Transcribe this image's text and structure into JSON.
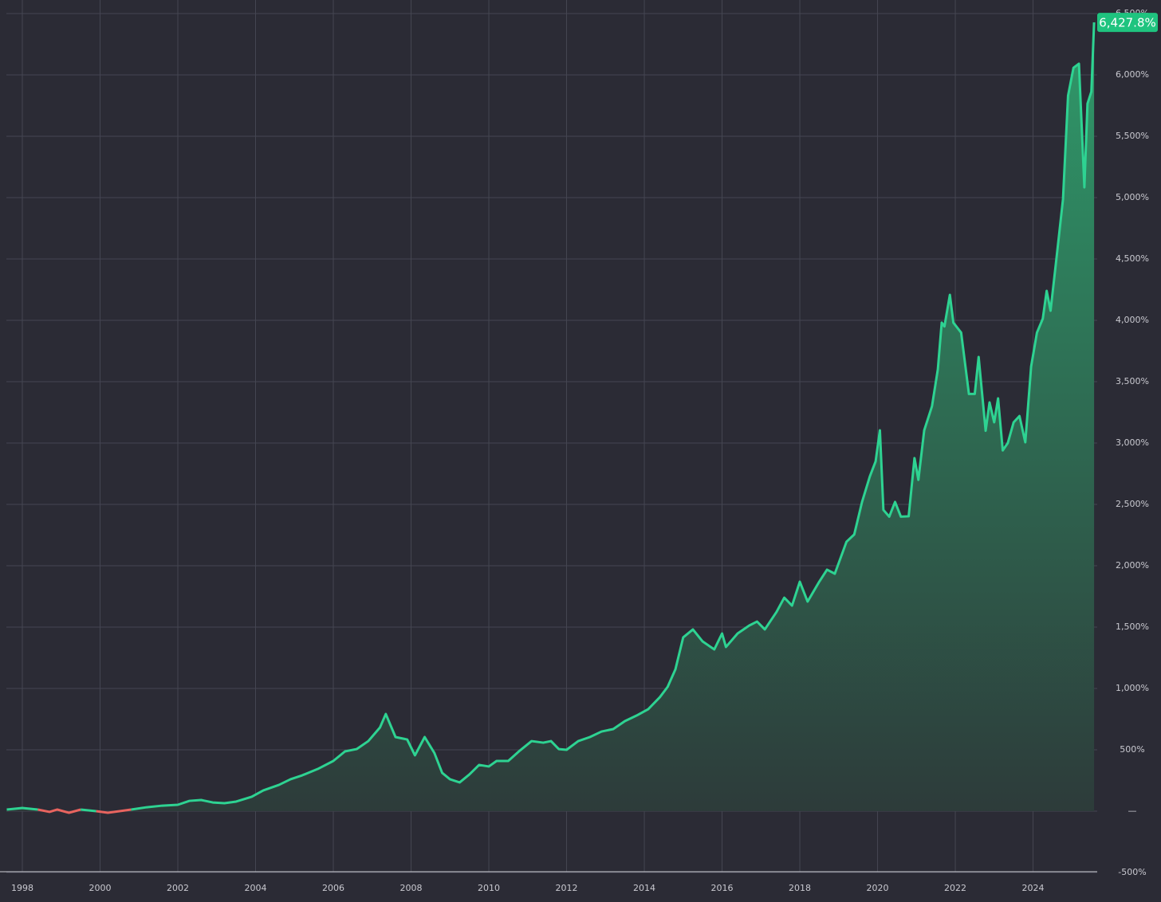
{
  "chart_data": {
    "type": "area",
    "background": "#2b2b35",
    "grid": true,
    "y_axis_side": "right",
    "x": [
      1997.6,
      1998.0,
      1998.4,
      1998.7,
      1998.9,
      1999.2,
      1999.5,
      1999.9,
      2000.2,
      2000.8,
      2001.2,
      2001.6,
      2002.0,
      2002.3,
      2002.6,
      2002.9,
      2003.2,
      2003.5,
      2003.9,
      2004.2,
      2004.6,
      2004.9,
      2005.2,
      2005.6,
      2006.0,
      2006.3,
      2006.6,
      2006.9,
      2007.2,
      2007.35,
      2007.6,
      2007.9,
      2008.1,
      2008.35,
      2008.6,
      2008.8,
      2009.0,
      2009.25,
      2009.5,
      2009.75,
      2010.0,
      2010.2,
      2010.5,
      2010.8,
      2011.1,
      2011.4,
      2011.6,
      2011.8,
      2012.0,
      2012.3,
      2012.6,
      2012.9,
      2013.2,
      2013.5,
      2013.8,
      2014.1,
      2014.4,
      2014.6,
      2014.8,
      2015.0,
      2015.25,
      2015.5,
      2015.8,
      2016.0,
      2016.1,
      2016.4,
      2016.7,
      2016.9,
      2017.1,
      2017.4,
      2017.6,
      2017.8,
      2018.0,
      2018.2,
      2018.5,
      2018.7,
      2018.9,
      2019.2,
      2019.4,
      2019.6,
      2019.8,
      2019.95,
      2020.06,
      2020.15,
      2020.3,
      2020.45,
      2020.6,
      2020.8,
      2020.95,
      2021.05,
      2021.2,
      2021.4,
      2021.55,
      2021.65,
      2021.72,
      2021.86,
      2021.95,
      2022.15,
      2022.35,
      2022.5,
      2022.6,
      2022.78,
      2022.88,
      2023.0,
      2023.1,
      2023.22,
      2023.35,
      2023.5,
      2023.65,
      2023.8,
      2023.95,
      2024.1,
      2024.25,
      2024.35,
      2024.45,
      2024.6,
      2024.77,
      2024.9,
      2025.04,
      2025.18,
      2025.32,
      2025.4,
      2025.5,
      2025.57
    ],
    "series": [
      {
        "color": "#2ed392",
        "negative_color": "#e8645f",
        "fill_top": "#2f9a6a",
        "fill_bottom": "#2d3b3a",
        "values": [
          13,
          26,
          13,
          -6,
          13,
          -13,
          13,
          0,
          -13,
          13,
          32,
          45,
          52,
          84,
          91,
          71,
          65,
          78,
          117,
          169,
          214,
          260,
          292,
          344,
          409,
          487,
          506,
          571,
          682,
          792,
          604,
          584,
          455,
          604,
          474,
          312,
          260,
          234,
          299,
          377,
          364,
          409,
          409,
          494,
          571,
          558,
          571,
          506,
          500,
          571,
          604,
          649,
          669,
          734,
          779,
          831,
          929,
          1013,
          1156,
          1416,
          1481,
          1383,
          1318,
          1448,
          1338,
          1448,
          1513,
          1545,
          1481,
          1623,
          1740,
          1675,
          1870,
          1708,
          1870,
          1968,
          1935,
          2195,
          2255,
          2519,
          2727,
          2850,
          3104,
          2455,
          2400,
          2520,
          2400,
          2403,
          2877,
          2700,
          3104,
          3300,
          3600,
          3981,
          3950,
          4208,
          3981,
          3900,
          3400,
          3400,
          3701,
          3100,
          3331,
          3169,
          3364,
          2940,
          3000,
          3169,
          3220,
          3006,
          3623,
          3900,
          4013,
          4240,
          4078,
          4500,
          4987,
          5831,
          6058,
          6091,
          5084,
          5766,
          5864,
          6427.8
        ]
      }
    ],
    "current": {
      "value": 6427.8,
      "label": "6,427.8%",
      "color": "#1fc47f"
    },
    "xlim": [
      1997.59,
      2025.65
    ],
    "xticks": [
      1998,
      2000,
      2002,
      2004,
      2006,
      2008,
      2010,
      2012,
      2014,
      2016,
      2018,
      2020,
      2022,
      2024
    ],
    "ylim": [
      -500,
      6500
    ],
    "yticks": [
      {
        "value": -500,
        "label": "-500%"
      },
      {
        "value": 0,
        "label": "—"
      },
      {
        "value": 500,
        "label": "500%"
      },
      {
        "value": 1000,
        "label": "1,000%"
      },
      {
        "value": 1500,
        "label": "1,500%"
      },
      {
        "value": 2000,
        "label": "2,000%"
      },
      {
        "value": 2500,
        "label": "2,500%"
      },
      {
        "value": 3000,
        "label": "3,000%"
      },
      {
        "value": 3500,
        "label": "3,500%"
      },
      {
        "value": 4000,
        "label": "4,000%"
      },
      {
        "value": 4500,
        "label": "4,500%"
      },
      {
        "value": 5000,
        "label": "5,000%"
      },
      {
        "value": 5500,
        "label": "5,500%"
      },
      {
        "value": 6000,
        "label": "6,000%"
      },
      {
        "value": 6500,
        "label": "6,500%"
      }
    ]
  }
}
